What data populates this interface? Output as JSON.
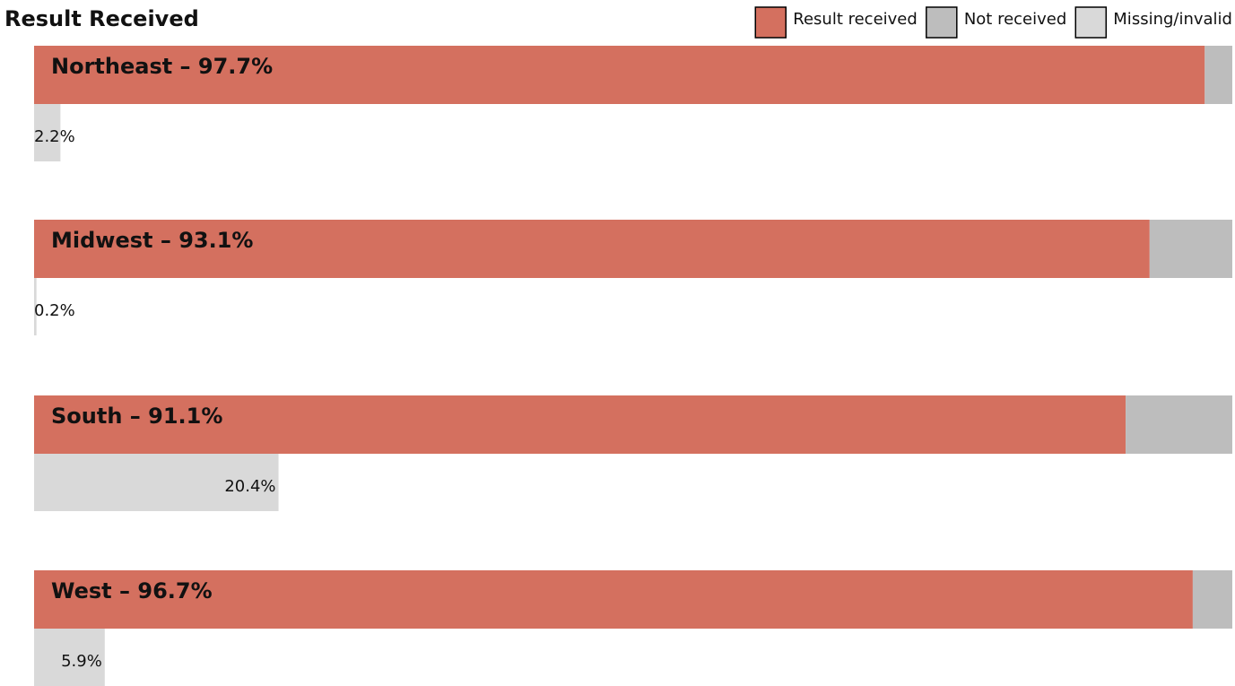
{
  "chart_data": {
    "type": "bar",
    "orientation": "horizontal",
    "title": "Result Received",
    "xlim": [
      0,
      100
    ],
    "legend": "top-right",
    "series": [
      {
        "name": "Result received",
        "color": "#d4705f",
        "values": [
          97.7,
          93.1,
          91.1,
          96.7
        ],
        "value_labels": [
          "Northeast – 97.7%",
          "Midwest – 93.1%",
          "South – 91.1%",
          "West – 96.7%"
        ]
      },
      {
        "name": "Not received",
        "color": "#bdbdbd",
        "values": [
          2.3,
          6.9,
          8.9,
          3.3
        ]
      },
      {
        "name": "Missing/invalid",
        "color": "#d9d9d9",
        "values": [
          2.2,
          0.2,
          20.4,
          5.9
        ],
        "value_labels": [
          "2.2%",
          "0.2%",
          "20.4%",
          "5.9%"
        ]
      }
    ]
  }
}
